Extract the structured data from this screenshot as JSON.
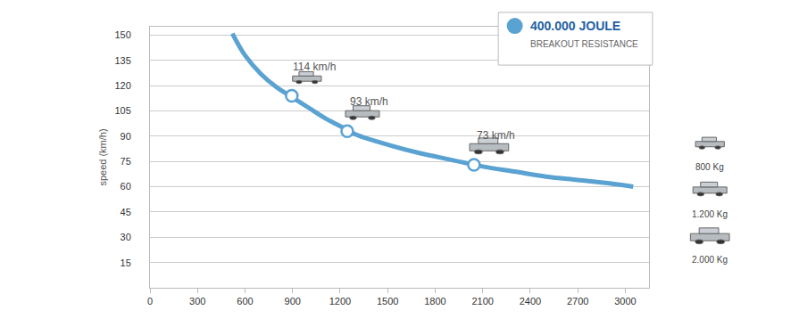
{
  "chart_data": {
    "type": "line",
    "y_label": "speed (km/h)",
    "x": [
      520,
      600,
      700,
      800,
      900,
      1000,
      1100,
      1200,
      1300,
      1500,
      1700,
      1900,
      2100,
      2300,
      2500,
      2700,
      2900,
      3050
    ],
    "series": [
      {
        "name": "400.000 JOULE",
        "color": "#5aa2d2",
        "values": [
          151,
          138,
          127,
          119,
          113,
          107,
          101,
          96,
          91,
          85,
          80,
          76,
          72,
          69,
          66,
          64,
          62,
          60
        ]
      }
    ],
    "legend": "upper right",
    "legend_subtitle": "BREAKOUT RESISTANCE",
    "points": [
      {
        "x": 895,
        "y": 114,
        "label": "114 km/h"
      },
      {
        "x": 1245,
        "y": 93,
        "label": "93 km/h"
      },
      {
        "x": 2045,
        "y": 73,
        "label": "73 km/h"
      }
    ],
    "weight_labels": [
      "800 Kg",
      "1.200 Kg",
      "2.000 Kg"
    ],
    "xlim": [
      0,
      3150
    ],
    "ylim": [
      0,
      155
    ],
    "xticks": [
      0,
      300,
      600,
      900,
      1200,
      1500,
      1800,
      2100,
      2400,
      2700,
      3000
    ],
    "yticks": [
      15,
      30,
      45,
      60,
      75,
      90,
      105,
      120,
      135,
      150
    ],
    "grid": true,
    "marker": "circle"
  }
}
